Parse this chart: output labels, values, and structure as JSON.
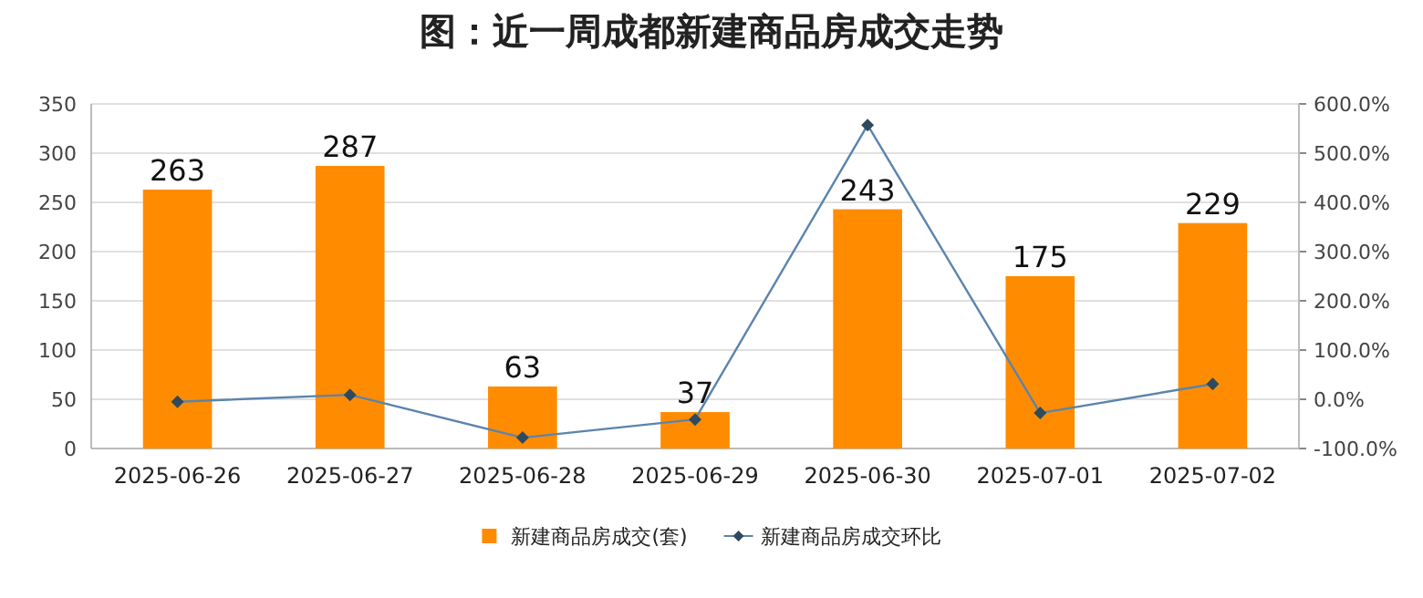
{
  "chart_data": {
    "type": "bar",
    "title": "图：近一周成都新建商品房成交走势",
    "categories": [
      "2025-06-26",
      "2025-06-27",
      "2025-06-28",
      "2025-06-29",
      "2025-06-30",
      "2025-07-01",
      "2025-07-02"
    ],
    "series": [
      {
        "name": "新建商品房成交(套)",
        "color": "#ff8c00",
        "values": [
          263,
          287,
          63,
          37,
          243,
          175,
          229
        ],
        "data_labels": true
      },
      {
        "name": "新建商品房成交环比",
        "type": "line",
        "axis": "y2",
        "color": "#5b84ad",
        "marker": "diamond",
        "values": [
          -5,
          9,
          -78,
          -41,
          557,
          -28,
          31
        ]
      }
    ],
    "ylim": [
      0,
      350
    ],
    "yticks": [
      0,
      50,
      100,
      150,
      200,
      250,
      300,
      350
    ],
    "y2lim": [
      -100,
      600
    ],
    "y2ticks": [
      {
        "value": -100,
        "label": "-100.0%"
      },
      {
        "value": 0,
        "label": "0.0%"
      },
      {
        "value": 100,
        "label": "100.0%"
      },
      {
        "value": 200,
        "label": "200.0%"
      },
      {
        "value": 300,
        "label": "300.0%"
      },
      {
        "value": 400,
        "label": "400.0%"
      },
      {
        "value": 500,
        "label": "500.0%"
      },
      {
        "value": 600,
        "label": "600.0%"
      }
    ],
    "grid": "y",
    "legend": "bottom"
  }
}
